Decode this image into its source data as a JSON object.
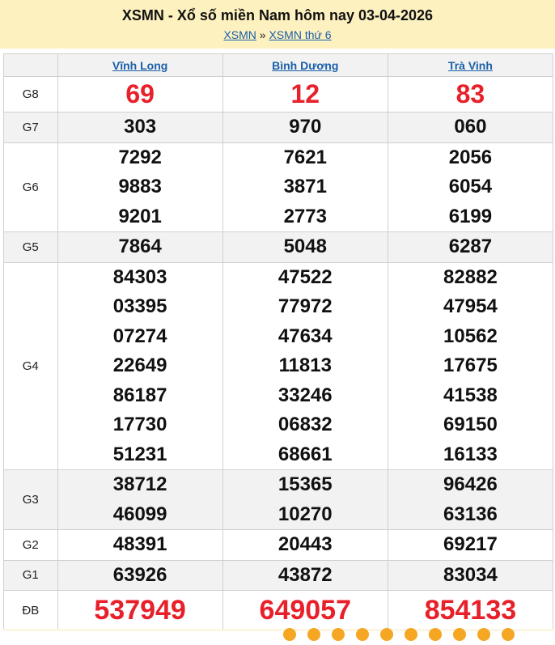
{
  "header": {
    "title": "XSMN - Xổ số miền Nam hôm nay 03-04-2026",
    "breadcrumb": [
      {
        "label": "XSMN"
      },
      {
        "sep": "»"
      },
      {
        "label": "XSMN thứ 6"
      }
    ]
  },
  "provinces": [
    "Vĩnh Long",
    "Bình Dương",
    "Trà Vinh"
  ],
  "rows": [
    {
      "label": "G8",
      "values": [
        [
          "69"
        ],
        [
          "12"
        ],
        [
          "83"
        ]
      ]
    },
    {
      "label": "G7",
      "values": [
        [
          "303"
        ],
        [
          "970"
        ],
        [
          "060"
        ]
      ]
    },
    {
      "label": "G6",
      "values": [
        [
          "7292",
          "9883",
          "9201"
        ],
        [
          "7621",
          "3871",
          "2773"
        ],
        [
          "2056",
          "6054",
          "6199"
        ]
      ]
    },
    {
      "label": "G5",
      "values": [
        [
          "7864"
        ],
        [
          "5048"
        ],
        [
          "6287"
        ]
      ]
    },
    {
      "label": "G4",
      "values": [
        [
          "84303",
          "03395",
          "07274",
          "22649",
          "86187",
          "17730",
          "51231"
        ],
        [
          "47522",
          "77972",
          "47634",
          "11813",
          "33246",
          "06832",
          "68661"
        ],
        [
          "82882",
          "47954",
          "10562",
          "17675",
          "41538",
          "69150",
          "16133"
        ]
      ]
    },
    {
      "label": "G3",
      "values": [
        [
          "38712",
          "46099"
        ],
        [
          "15365",
          "10270"
        ],
        [
          "96426",
          "63136"
        ]
      ]
    },
    {
      "label": "G2",
      "values": [
        [
          "48391"
        ],
        [
          "20443"
        ],
        [
          "69217"
        ]
      ]
    },
    {
      "label": "G1",
      "values": [
        [
          "63926"
        ],
        [
          "43872"
        ],
        [
          "83034"
        ]
      ]
    },
    {
      "label": "ĐB",
      "values": [
        [
          "537949"
        ],
        [
          "649057"
        ],
        [
          "854133"
        ]
      ]
    }
  ],
  "colors": {
    "banner": "#fdf1c0",
    "link": "#1a5fa8",
    "highlight": "#e8202a",
    "alt_row": "#f2f2f2"
  }
}
